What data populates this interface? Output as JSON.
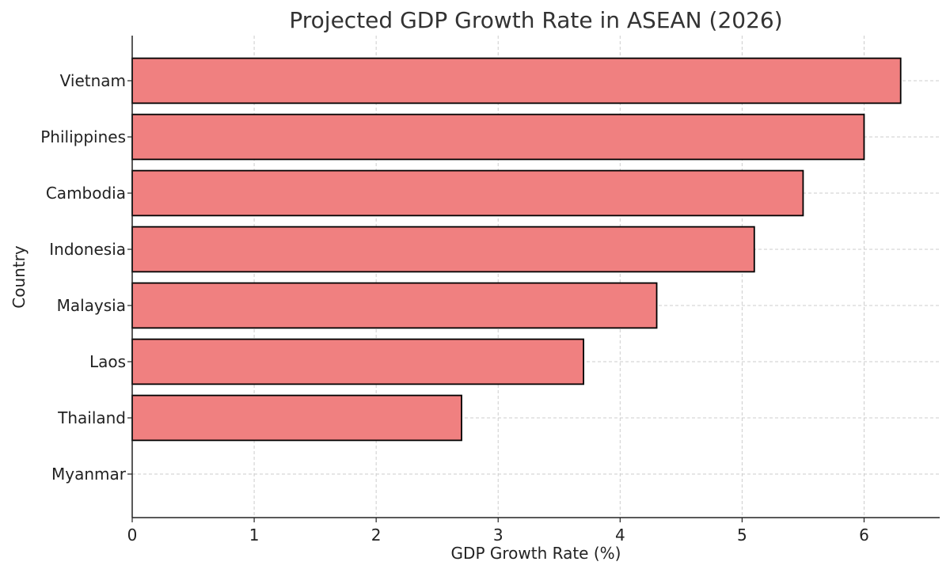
{
  "chart_data": {
    "type": "bar",
    "orientation": "horizontal",
    "title": "Projected GDP Growth Rate in ASEAN (2026)",
    "xlabel": "GDP Growth Rate (%)",
    "ylabel": "Country",
    "categories": [
      "Vietnam",
      "Philippines",
      "Cambodia",
      "Indonesia",
      "Malaysia",
      "Laos",
      "Thailand",
      "Myanmar"
    ],
    "values": [
      6.3,
      6.0,
      5.5,
      5.1,
      4.3,
      3.7,
      2.7,
      0
    ],
    "xlim": [
      0,
      6.62
    ],
    "xticks": [
      "0",
      "1",
      "2",
      "3",
      "4",
      "5",
      "6"
    ],
    "grid": true,
    "bar_color": "#F08080",
    "edge_color": "#000000"
  }
}
